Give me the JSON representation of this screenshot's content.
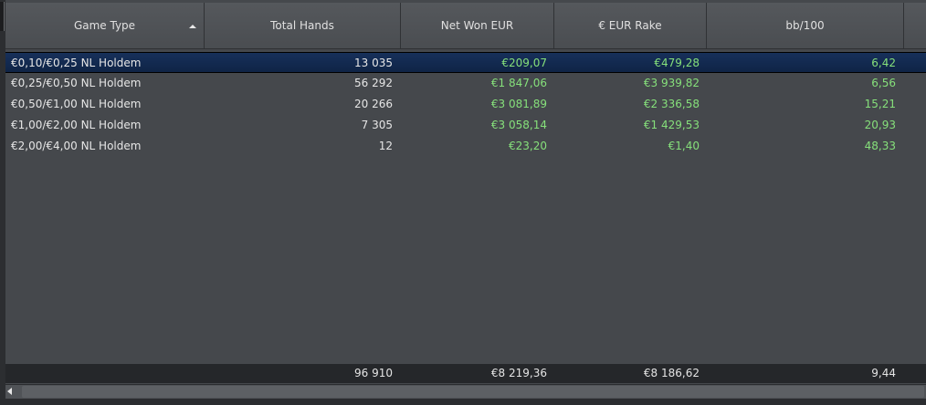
{
  "columns": {
    "game_type": "Game Type",
    "total_hands": "Total Hands",
    "net_won": "Net Won EUR",
    "rake": "€ EUR Rake",
    "bb100": "bb/100"
  },
  "rows": [
    {
      "game": "€0,10/€0,25 NL Holdem",
      "hands": "13 035",
      "net": "€209,07",
      "rake": "€479,28",
      "bb100": "6,42",
      "selected": true
    },
    {
      "game": "€0,25/€0,50 NL Holdem",
      "hands": "56 292",
      "net": "€1 847,06",
      "rake": "€3 939,82",
      "bb100": "6,56"
    },
    {
      "game": "€0,50/€1,00 NL Holdem",
      "hands": "20 266",
      "net": "€3 081,89",
      "rake": "€2 336,58",
      "bb100": "15,21"
    },
    {
      "game": "€1,00/€2,00 NL Holdem",
      "hands": "7 305",
      "net": "€3 058,14",
      "rake": "€1 429,53",
      "bb100": "20,93"
    },
    {
      "game": "€2,00/€4,00 NL Holdem",
      "hands": "12",
      "net": "€23,20",
      "rake": "€1,40",
      "bb100": "48,33"
    }
  ],
  "totals": {
    "hands": "96 910",
    "net": "€8 219,36",
    "rake": "€8 186,62",
    "bb100": "9,44"
  },
  "colors": {
    "positive": "#86e07b",
    "selected_row": "#17305a",
    "background": "#45484c"
  },
  "icons": {
    "sort": "sort-ascending-icon",
    "scroll_left": "scroll-left-arrow-icon"
  }
}
